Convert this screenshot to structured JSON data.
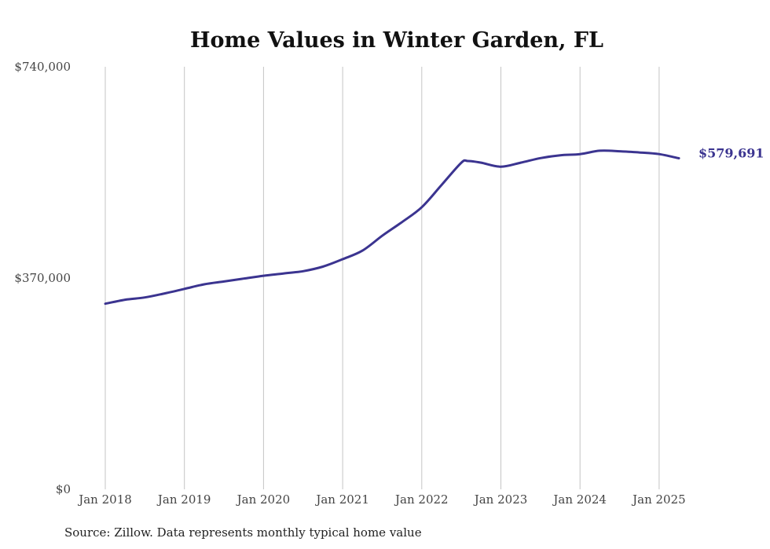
{
  "chart_data": {
    "type": "line",
    "title": "Home Values in Winter Garden, FL",
    "source_note": "Source: Zillow. Data represents monthly typical home value",
    "y_ticks": [
      {
        "value": 740000,
        "label": "$740,000"
      },
      {
        "value": 370000,
        "label": "$370,000"
      },
      {
        "value": 0,
        "label": "$0"
      }
    ],
    "ylim": [
      0,
      740000
    ],
    "x_ticks": [
      {
        "value": "2018-01",
        "label": "Jan 2018"
      },
      {
        "value": "2019-01",
        "label": "Jan 2019"
      },
      {
        "value": "2020-01",
        "label": "Jan 2020"
      },
      {
        "value": "2021-01",
        "label": "Jan 2021"
      },
      {
        "value": "2022-01",
        "label": "Jan 2022"
      },
      {
        "value": "2023-01",
        "label": "Jan 2023"
      },
      {
        "value": "2024-01",
        "label": "Jan 2024"
      },
      {
        "value": "2025-01",
        "label": "Jan 2025"
      }
    ],
    "grid": {
      "vertical": true,
      "horizontal": false
    },
    "line_color": "#3b3490",
    "end_label": "$579,691",
    "series": [
      {
        "x": [
          "2018-01",
          "2018-04",
          "2018-07",
          "2018-10",
          "2019-01",
          "2019-04",
          "2019-07",
          "2019-10",
          "2020-01",
          "2020-04",
          "2020-07",
          "2020-10",
          "2021-01",
          "2021-04",
          "2021-07",
          "2021-10",
          "2022-01",
          "2022-04",
          "2022-07",
          "2022-08",
          "2022-10",
          "2023-01",
          "2023-04",
          "2023-07",
          "2023-10",
          "2024-01",
          "2024-04",
          "2024-07",
          "2024-10",
          "2025-01",
          "2025-04"
        ],
        "y": [
          325000,
          332000,
          336000,
          343000,
          351000,
          359000,
          364000,
          369000,
          374000,
          378000,
          382000,
          390000,
          403000,
          418000,
          444000,
          468000,
          494000,
          533000,
          572000,
          575000,
          572000,
          565000,
          572000,
          580000,
          585000,
          587000,
          593000,
          592000,
          590000,
          587000,
          579691
        ]
      }
    ]
  }
}
